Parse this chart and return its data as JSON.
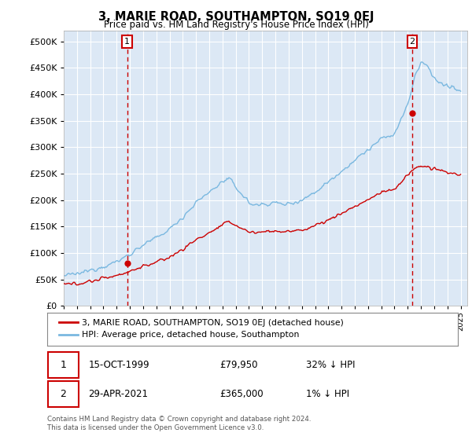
{
  "title": "3, MARIE ROAD, SOUTHAMPTON, SO19 0EJ",
  "subtitle": "Price paid vs. HM Land Registry's House Price Index (HPI)",
  "hpi_color": "#7ab8e0",
  "price_color": "#cc0000",
  "marker_color": "#cc0000",
  "background_color": "#ffffff",
  "plot_bg_color": "#dce8f5",
  "grid_color": "#ffffff",
  "ylim": [
    0,
    520000
  ],
  "yticks": [
    0,
    50000,
    100000,
    150000,
    200000,
    250000,
    300000,
    350000,
    400000,
    450000,
    500000
  ],
  "sale1_year": 1999.79,
  "sale1_price": 79950,
  "sale2_year": 2021.33,
  "sale2_price": 365000,
  "legend_line1": "3, MARIE ROAD, SOUTHAMPTON, SO19 0EJ (detached house)",
  "legend_line2": "HPI: Average price, detached house, Southampton",
  "sale1_date": "15-OCT-1999",
  "sale1_price_str": "£79,950",
  "sale1_hpi": "32% ↓ HPI",
  "sale2_date": "29-APR-2021",
  "sale2_price_str": "£365,000",
  "sale2_hpi": "1% ↓ HPI",
  "footer": "Contains HM Land Registry data © Crown copyright and database right 2024.\nThis data is licensed under the Open Government Licence v3.0.",
  "xmin": 1995.0,
  "xmax": 2025.5,
  "hpi_keypoints_x": [
    1995,
    1996,
    1997,
    1998,
    1999,
    2000,
    2001,
    2002,
    2003,
    2004,
    2005,
    2006,
    2007,
    2007.5,
    2008,
    2009,
    2009.5,
    2010,
    2011,
    2011.5,
    2012,
    2013,
    2014,
    2015,
    2016,
    2017,
    2018,
    2019,
    2020,
    2021,
    2021.5,
    2022,
    2022.5,
    2023,
    2023.5,
    2024,
    2024.5,
    2025
  ],
  "hpi_keypoints_y": [
    57000,
    60000,
    67000,
    75000,
    83000,
    98000,
    115000,
    128000,
    145000,
    168000,
    195000,
    215000,
    235000,
    240000,
    225000,
    195000,
    190000,
    192000,
    195000,
    192000,
    193000,
    200000,
    215000,
    235000,
    255000,
    275000,
    295000,
    315000,
    325000,
    380000,
    430000,
    460000,
    455000,
    430000,
    420000,
    415000,
    410000,
    405000
  ],
  "price_keypoints_x": [
    1995,
    1996,
    1997,
    1998,
    1999,
    2000,
    2001,
    2002,
    2003,
    2004,
    2005,
    2006,
    2007,
    2007.5,
    2008,
    2009,
    2009.5,
    2010,
    2011,
    2011.5,
    2012,
    2013,
    2014,
    2015,
    2016,
    2017,
    2018,
    2019,
    2020,
    2021,
    2021.3,
    2021.5,
    2022,
    2022.5,
    2023,
    2024,
    2025
  ],
  "price_keypoints_y": [
    40000,
    42000,
    46000,
    52000,
    58000,
    65000,
    75000,
    82000,
    92000,
    107000,
    125000,
    138000,
    152000,
    160000,
    152000,
    140000,
    138000,
    140000,
    142000,
    140000,
    140000,
    143000,
    152000,
    162000,
    175000,
    188000,
    200000,
    215000,
    220000,
    248000,
    255000,
    258000,
    265000,
    262000,
    258000,
    252000,
    248000
  ]
}
